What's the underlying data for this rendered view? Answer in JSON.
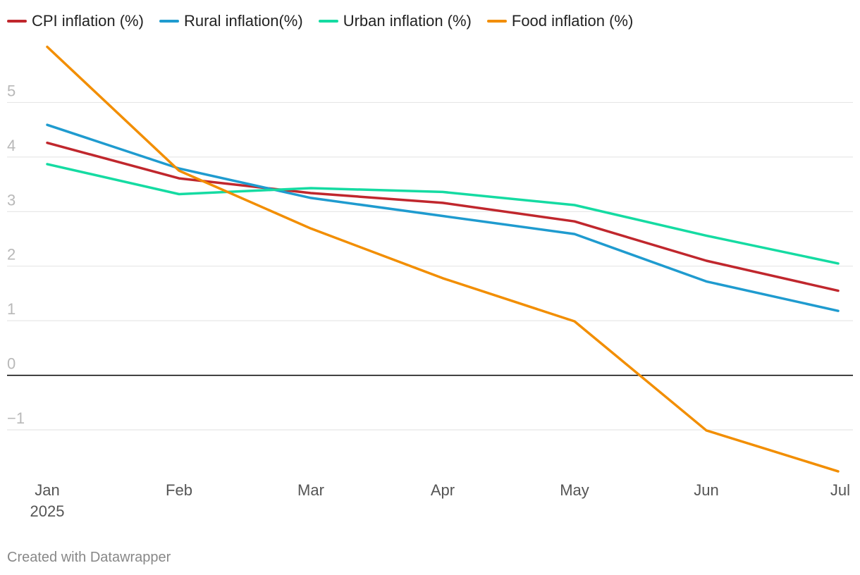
{
  "chart_data": {
    "type": "line",
    "title": "",
    "xlabel": "",
    "ylabel": "",
    "categories": [
      "Jan",
      "Feb",
      "Mar",
      "Apr",
      "May",
      "Jun",
      "Jul"
    ],
    "x_sublabel_first": "2025",
    "ylim": [
      -1.8,
      6
    ],
    "yticks": [
      -1,
      0,
      1,
      2,
      3,
      4,
      5
    ],
    "ytick_labels": [
      "−1",
      "0",
      "1",
      "2",
      "3",
      "4",
      "5"
    ],
    "grid": true,
    "legend_position": "top-left",
    "series": [
      {
        "name": "CPI inflation (%)",
        "color": "#c0272d",
        "values": [
          4.26,
          3.61,
          3.34,
          3.16,
          2.82,
          2.1,
          1.55
        ]
      },
      {
        "name": "Rural inflation(%)",
        "color": "#1f9bcf",
        "values": [
          4.59,
          3.79,
          3.25,
          2.92,
          2.59,
          1.72,
          1.18
        ]
      },
      {
        "name": "Urban inflation (%)",
        "color": "#15dba2",
        "values": [
          3.87,
          3.32,
          3.43,
          3.36,
          3.12,
          2.56,
          2.05
        ]
      },
      {
        "name": "Food inflation (%)",
        "color": "#f28e00",
        "values": [
          6.02,
          3.75,
          2.69,
          1.78,
          0.99,
          -1.01,
          -1.76
        ]
      }
    ]
  },
  "footer": {
    "credit": "Created with Datawrapper"
  }
}
